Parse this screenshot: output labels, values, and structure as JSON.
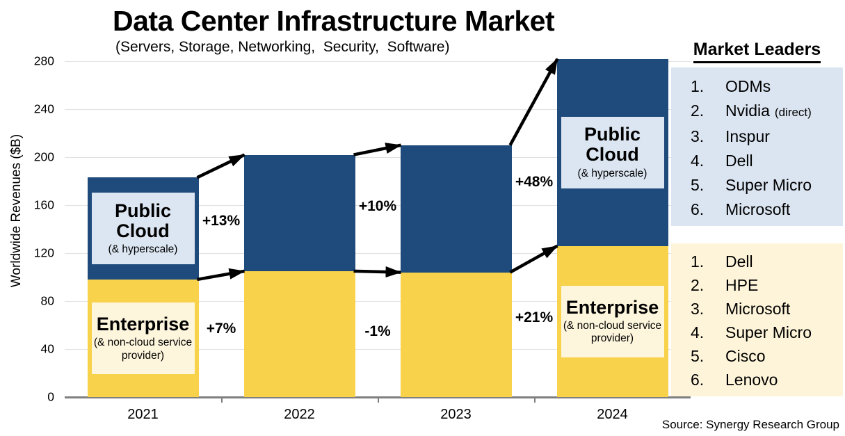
{
  "header": {
    "title": "Data Center Infrastructure Market",
    "subtitle": "(Servers, Storage, Networking,  Security,  Software)"
  },
  "chart_data": {
    "type": "bar",
    "stacked": true,
    "title": "Data Center Infrastructure Market",
    "subtitle": "(Servers, Storage, Networking, Security, Software)",
    "xlabel": "",
    "ylabel": "Worldwide Revenues ($B)",
    "ylim": [
      0,
      280
    ],
    "yticks": [
      0,
      40,
      80,
      120,
      160,
      200,
      240,
      280
    ],
    "grid": "horizontal",
    "legend_position": "none",
    "categories": [
      "2021",
      "2022",
      "2023",
      "2024"
    ],
    "series": [
      {
        "name": "Enterprise (& non-cloud service provider)",
        "color": "#f8d24a",
        "values": [
          98,
          105,
          104,
          126
        ]
      },
      {
        "name": "Public Cloud (& hyperscale)",
        "color": "#1f4b7c",
        "values": [
          85,
          97,
          106,
          156
        ]
      }
    ],
    "totals": [
      183,
      202,
      210,
      282
    ],
    "growth_annotations": {
      "public_cloud": [
        "+13%",
        "+10%",
        "+48%"
      ],
      "enterprise": [
        "+7%",
        "-1%",
        "+21%"
      ]
    },
    "segment_labels": {
      "public_cloud": {
        "title": "Public Cloud",
        "subtitle": "(& hyperscale)",
        "labeled_bars": [
          "2021",
          "2024"
        ]
      },
      "enterprise": {
        "title": "Enterprise",
        "subtitle": "(& non-cloud service provider)",
        "labeled_bars": [
          "2021",
          "2024"
        ]
      }
    }
  },
  "market_leaders": {
    "heading": "Market Leaders",
    "public_cloud_panel": {
      "items": [
        {
          "rank": "1.",
          "name": "ODMs"
        },
        {
          "rank": "2.",
          "name": "Nvidia",
          "note": "(direct)"
        },
        {
          "rank": "3.",
          "name": "Inspur"
        },
        {
          "rank": "4.",
          "name": "Dell"
        },
        {
          "rank": "5.",
          "name": "Super Micro"
        },
        {
          "rank": "6.",
          "name": "Microsoft"
        }
      ]
    },
    "enterprise_panel": {
      "items": [
        {
          "rank": "1.",
          "name": "Dell"
        },
        {
          "rank": "2.",
          "name": "HPE"
        },
        {
          "rank": "3.",
          "name": "Microsoft"
        },
        {
          "rank": "4.",
          "name": "Super Micro"
        },
        {
          "rank": "5.",
          "name": "Cisco"
        },
        {
          "rank": "6.",
          "name": "Lenovo"
        }
      ]
    }
  },
  "source": "Source: Synergy Research Group",
  "colors": {
    "public_cloud_bar": "#1f4b7c",
    "enterprise_bar": "#f8d24a",
    "public_cloud_label_box": "#dce6f2",
    "enterprise_label_box": "#fdf5dc",
    "public_cloud_panel_bg": "#dbe5f1",
    "enterprise_panel_bg": "#fdf4d9",
    "arrow": "#000000",
    "gridline": "#e2e2e2",
    "axis_line": "#7f7f7f"
  }
}
